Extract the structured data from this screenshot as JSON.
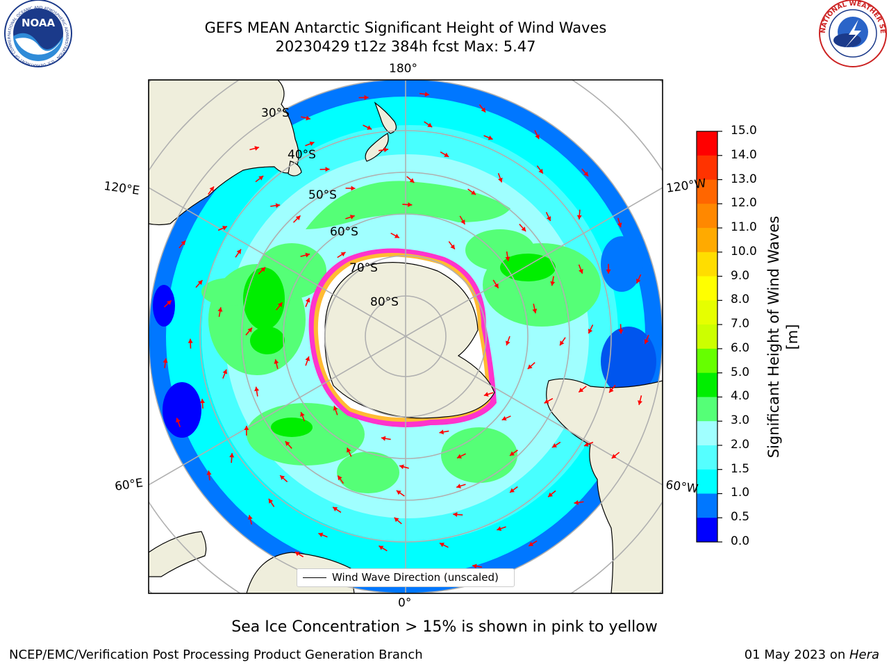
{
  "header": {
    "title_line1": "GEFS MEAN Antarctic Significant Height of Wind Waves",
    "title_line2": "20230429 t12z 384h fcst   Max: 5.47"
  },
  "logos": {
    "noaa": "NOAA",
    "noaa_ring_text": "NATIONAL OCEANIC AND ATMOSPHERIC ADMINISTRATION · U.S. DEPARTMENT OF COMMERCE",
    "nws_ring_text": "NATIONAL WEATHER SERVICE"
  },
  "map": {
    "projection": "south-polar-stereographic",
    "longitude_labels": {
      "top": "180°",
      "bottom": "0°",
      "left_upper": "120°E",
      "left_lower": "60°E",
      "right_upper": "120°W",
      "right_lower": "60°W"
    },
    "latitude_labels": [
      "30°S",
      "40°S",
      "50°S",
      "60°S",
      "70°S",
      "80°S"
    ],
    "legend_entry": "Wind Wave Direction (unscaled)",
    "arrow_color": "#ff0000",
    "land_color": "#efeedc"
  },
  "colorbar": {
    "label": "Significant Height of Wind Waves [m]",
    "ticks": [
      "15.0",
      "14.0",
      "13.0",
      "12.0",
      "11.0",
      "10.0",
      "9.0",
      "8.0",
      "7.0",
      "6.0",
      "5.0",
      "4.0",
      "3.0",
      "2.0",
      "1.5",
      "1.0",
      "0.5",
      "0.0"
    ],
    "colors_top_to_bottom": [
      "#ff0000",
      "#ff3300",
      "#ff6600",
      "#ff8800",
      "#ffaa00",
      "#ffdd00",
      "#ffff00",
      "#e6ff00",
      "#ccff00",
      "#66ff00",
      "#00ee00",
      "#55ff77",
      "#a0ffff",
      "#55ffff",
      "#00ffff",
      "#0077ff",
      "#0000ff"
    ]
  },
  "note": "Sea Ice Concentration > 15% is shown in pink to yellow",
  "footer": {
    "left": "NCEP/EMC/Verification Post Processing Product Generation Branch",
    "right_date": "01 May 2023 on ",
    "right_host": "Hera"
  }
}
